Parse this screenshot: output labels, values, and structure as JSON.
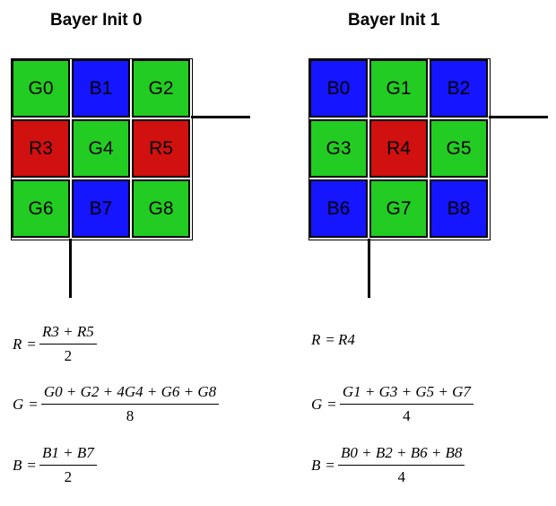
{
  "colors": {
    "green": "#22cc22",
    "blue": "#1515ff",
    "red": "#d11010",
    "text": "#000000"
  },
  "panels": [
    {
      "title": "Bayer Init 0",
      "cells": [
        {
          "label": "G0",
          "color": "green"
        },
        {
          "label": "B1",
          "color": "blue"
        },
        {
          "label": "G2",
          "color": "green"
        },
        {
          "label": "R3",
          "color": "red"
        },
        {
          "label": "G4",
          "color": "green"
        },
        {
          "label": "R5",
          "color": "red"
        },
        {
          "label": "G6",
          "color": "green"
        },
        {
          "label": "B7",
          "color": "blue"
        },
        {
          "label": "G8",
          "color": "green"
        }
      ],
      "formulas": {
        "r": {
          "lhs": "R",
          "num": "R3 + R5",
          "den": "2"
        },
        "g": {
          "lhs": "G",
          "num": "G0 + G2 + 4G4 + G6 + G8",
          "den": "8"
        },
        "b": {
          "lhs": "B",
          "num": "B1 + B7",
          "den": "2"
        }
      }
    },
    {
      "title": "Bayer Init 1",
      "cells": [
        {
          "label": "B0",
          "color": "blue"
        },
        {
          "label": "G1",
          "color": "green"
        },
        {
          "label": "B2",
          "color": "blue"
        },
        {
          "label": "G3",
          "color": "green"
        },
        {
          "label": "R4",
          "color": "red"
        },
        {
          "label": "G5",
          "color": "green"
        },
        {
          "label": "B6",
          "color": "blue"
        },
        {
          "label": "G7",
          "color": "green"
        },
        {
          "label": "B8",
          "color": "blue"
        }
      ],
      "formulas": {
        "r": {
          "lhs": "R",
          "rhs": "R4"
        },
        "g": {
          "lhs": "G",
          "num": "G1 + G3 + G5 + G7",
          "den": "4"
        },
        "b": {
          "lhs": "B",
          "num": "B0 + B2 + B6 + B8",
          "den": "4"
        }
      }
    }
  ]
}
